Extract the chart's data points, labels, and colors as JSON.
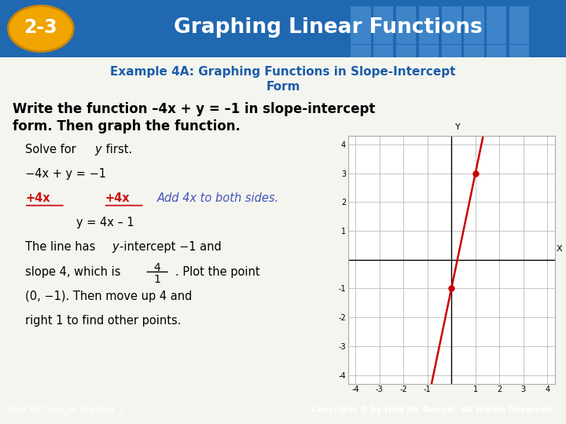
{
  "title_badge": "2-3",
  "title_text": "Graphing Linear Functions",
  "header_bg_left": "#1a6abf",
  "header_bg_right": "#5ba3d9",
  "badge_bg": "#f0a500",
  "subtitle_line1": "Example 4A: Graphing Functions in Slope-Intercept",
  "subtitle_line2": "Form",
  "subtitle_color": "#1a5ca8",
  "bold_line1": "Write the function –4x + y = –1 in slope-intercept",
  "bold_line2": "form. Then graph the function.",
  "footer_left": "Holt McDougal Algebra 2",
  "footer_right": "Copyright © by Holt Mc Dougal. All Rights Reserved.",
  "footer_bg": "#2a7ab5",
  "graph_xlim": [
    -4.5,
    4.5
  ],
  "graph_ylim": [
    -4.5,
    4.5
  ],
  "line_color": "#cc0000",
  "point_color": "#cc0000",
  "points": [
    [
      0,
      -1
    ],
    [
      1,
      3
    ]
  ],
  "slope": 4,
  "intercept": -1,
  "bg_color": "#f5f5f0",
  "red_color": "#cc1111",
  "blue_italic_color": "#4455bb"
}
